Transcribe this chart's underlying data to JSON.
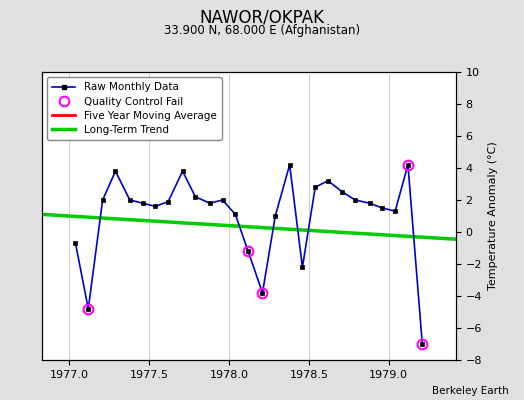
{
  "title": "NAWOR/OKPAK",
  "subtitle": "33.900 N, 68.000 E (Afghanistan)",
  "credit": "Berkeley Earth",
  "ylabel_right": "Temperature Anomaly (°C)",
  "ylim": [
    -8,
    10
  ],
  "yticks": [
    -8,
    -6,
    -4,
    -2,
    0,
    2,
    4,
    6,
    8,
    10
  ],
  "xlim": [
    1976.83,
    1979.42
  ],
  "xticks": [
    1977,
    1977.5,
    1978,
    1978.5,
    1979
  ],
  "background_color": "#e0e0e0",
  "plot_background": "#ffffff",
  "raw_x": [
    1977.04,
    1977.12,
    1977.21,
    1977.29,
    1977.38,
    1977.46,
    1977.54,
    1977.62,
    1977.71,
    1977.79,
    1977.88,
    1977.96,
    1978.04,
    1978.12,
    1978.21,
    1978.29,
    1978.38,
    1978.46,
    1978.54,
    1978.62,
    1978.71,
    1978.79,
    1978.88,
    1978.96,
    1979.04,
    1979.12,
    1979.21
  ],
  "raw_y": [
    -0.7,
    -4.8,
    2.0,
    3.8,
    2.0,
    1.8,
    1.6,
    1.9,
    3.8,
    2.2,
    1.8,
    2.0,
    1.1,
    -1.2,
    -3.8,
    1.0,
    4.2,
    -2.2,
    2.8,
    3.2,
    2.5,
    2.0,
    1.8,
    1.5,
    1.3,
    4.2,
    -7.0
  ],
  "qc_fail_x": [
    1977.12,
    1978.12,
    1978.21,
    1979.12,
    1979.21
  ],
  "qc_fail_y": [
    -4.8,
    -1.2,
    -3.8,
    4.2,
    -7.0
  ],
  "trend_x": [
    1976.83,
    1979.42
  ],
  "trend_y": [
    1.1,
    -0.45
  ],
  "raw_color": "#0000cc",
  "trend_color": "#00cc00",
  "qc_color": "#ff00ff",
  "five_yr_color": "#ff0000"
}
